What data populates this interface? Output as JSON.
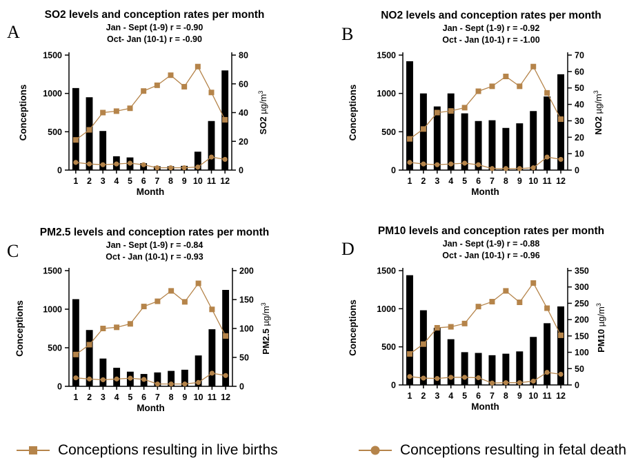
{
  "colors": {
    "bar": "#000000",
    "line": "#b5844a"
  },
  "legend": {
    "live_births": "Conceptions resulting in live births",
    "fetal_deaths": "Conceptions resulting in fetal deaths"
  },
  "chart_data": [
    {
      "type": "bar",
      "panel_letter": "A",
      "title": "SO2 levels and conception rates per month",
      "subtitle_1": "Jan - Sept (1-9) r = -0.90",
      "subtitle_2": "Oct- Jan (10-1) r = -0.90",
      "xlabel": "Month",
      "ylabel_left": "Conceptions",
      "ylabel_right_base": "SO2 ",
      "ylabel_right_unit": "µg/m",
      "ylabel_right_sup": "3",
      "categories": [
        "1",
        "2",
        "3",
        "4",
        "5",
        "6",
        "7",
        "8",
        "9",
        "10",
        "11",
        "12"
      ],
      "ylim_left": [
        0,
        1500
      ],
      "yticks_left": [
        0,
        500,
        1000,
        1500
      ],
      "ylim_right": [
        0,
        80
      ],
      "yticks_right": [
        0,
        20,
        40,
        60,
        80
      ],
      "series": [
        {
          "name": "Conceptions resulting in live births",
          "kind": "line",
          "marker": "square",
          "axis": "right",
          "values": [
            21,
            28,
            40,
            41,
            43,
            55,
            59,
            66,
            58,
            72,
            54,
            35
          ]
        },
        {
          "name": "Conceptions resulting in fetal deaths",
          "kind": "line",
          "marker": "circle",
          "axis": "left",
          "values": [
            100,
            80,
            70,
            80,
            90,
            70,
            30,
            30,
            30,
            40,
            170,
            140
          ]
        },
        {
          "kind": "bar",
          "axis": "left",
          "values": [
            1070,
            950,
            510,
            180,
            165,
            90,
            50,
            50,
            55,
            240,
            640,
            1300
          ]
        }
      ]
    },
    {
      "type": "bar",
      "panel_letter": "B",
      "title": "NO2 levels and conception rates per month",
      "subtitle_1": "Jan - Sept (1-9) r = -0.92",
      "subtitle_2": "Oct - Jan (10-1) r = -1.00",
      "xlabel": "Month",
      "ylabel_left": "Conceptions",
      "ylabel_right_base": "NO2 ",
      "ylabel_right_unit": "µg/m",
      "ylabel_right_sup": "3",
      "categories": [
        "1",
        "2",
        "3",
        "4",
        "5",
        "6",
        "7",
        "8",
        "9",
        "10",
        "11",
        "12"
      ],
      "ylim_left": [
        0,
        1500
      ],
      "yticks_left": [
        0,
        500,
        1000,
        1500
      ],
      "ylim_right": [
        0,
        70
      ],
      "yticks_right": [
        0,
        10,
        20,
        30,
        40,
        50,
        60,
        70
      ],
      "series": [
        {
          "name": "Conceptions resulting in live births",
          "kind": "line",
          "marker": "square",
          "axis": "right",
          "values": [
            19,
            25,
            35,
            36,
            38,
            48,
            51,
            57,
            51,
            63,
            47,
            31
          ]
        },
        {
          "name": "Conceptions resulting in fetal deaths",
          "kind": "line",
          "marker": "circle",
          "axis": "left",
          "values": [
            100,
            80,
            70,
            80,
            90,
            70,
            20,
            20,
            20,
            30,
            170,
            140
          ]
        },
        {
          "kind": "bar",
          "axis": "left",
          "values": [
            1420,
            1000,
            830,
            1000,
            740,
            640,
            650,
            550,
            610,
            770,
            960,
            1250
          ]
        }
      ]
    },
    {
      "type": "bar",
      "panel_letter": "C",
      "title": "PM2.5 levels and conception rates per month",
      "subtitle_1": "Jan - Sept (1-9) r = -0.84",
      "subtitle_2": "Oct - Jan (10-1) r = -0.93",
      "xlabel": "Month",
      "ylabel_left": "Conceptions",
      "ylabel_right_base": "PM2.5 ",
      "ylabel_right_unit": "µg/m",
      "ylabel_right_sup": "3",
      "categories": [
        "1",
        "2",
        "3",
        "4",
        "5",
        "6",
        "7",
        "8",
        "9",
        "10",
        "11",
        "12"
      ],
      "ylim_left": [
        0,
        1500
      ],
      "yticks_left": [
        0,
        500,
        1000,
        1500
      ],
      "ylim_right": [
        0,
        200
      ],
      "yticks_right": [
        0,
        50,
        100,
        150,
        200
      ],
      "series": [
        {
          "name": "Conceptions resulting in live births",
          "kind": "line",
          "marker": "square",
          "axis": "right",
          "values": [
            55,
            72,
            100,
            102,
            108,
            138,
            147,
            165,
            146,
            178,
            133,
            87
          ]
        },
        {
          "name": "Conceptions resulting in fetal deaths",
          "kind": "line",
          "marker": "circle",
          "axis": "left",
          "values": [
            110,
            95,
            85,
            95,
            105,
            90,
            30,
            30,
            30,
            50,
            170,
            140
          ]
        },
        {
          "kind": "bar",
          "axis": "left",
          "values": [
            1130,
            730,
            360,
            240,
            190,
            160,
            180,
            200,
            215,
            400,
            740,
            1250
          ]
        }
      ]
    },
    {
      "type": "bar",
      "panel_letter": "D",
      "title": "PM10 levels and conception rates per month",
      "subtitle_1": "Jan - Sept (1-9) r = -0.88",
      "subtitle_2": "Oct - Jan (10-1) r = -0.96",
      "xlabel": "Month",
      "ylabel_left": "Conceptions",
      "ylabel_right_base": "PM10 ",
      "ylabel_right_unit": "µg/m",
      "ylabel_right_sup": "3",
      "categories": [
        "1",
        "2",
        "3",
        "4",
        "5",
        "6",
        "7",
        "8",
        "9",
        "10",
        "11",
        "12"
      ],
      "ylim_left": [
        0,
        1500
      ],
      "yticks_left": [
        0,
        500,
        1000,
        1500
      ],
      "ylim_right": [
        0,
        350
      ],
      "yticks_right": [
        0,
        50,
        100,
        150,
        200,
        250,
        300,
        350
      ],
      "series": [
        {
          "name": "Conceptions resulting in live births",
          "kind": "line",
          "marker": "square",
          "axis": "right",
          "values": [
            95,
            125,
            175,
            178,
            188,
            240,
            255,
            288,
            253,
            312,
            235,
            152
          ]
        },
        {
          "name": "Conceptions resulting in fetal deaths",
          "kind": "line",
          "marker": "circle",
          "axis": "left",
          "values": [
            110,
            90,
            85,
            100,
            100,
            95,
            25,
            30,
            30,
            50,
            165,
            140
          ]
        },
        {
          "kind": "bar",
          "axis": "left",
          "values": [
            1440,
            980,
            750,
            600,
            430,
            420,
            390,
            410,
            440,
            630,
            810,
            1030
          ]
        }
      ]
    }
  ]
}
